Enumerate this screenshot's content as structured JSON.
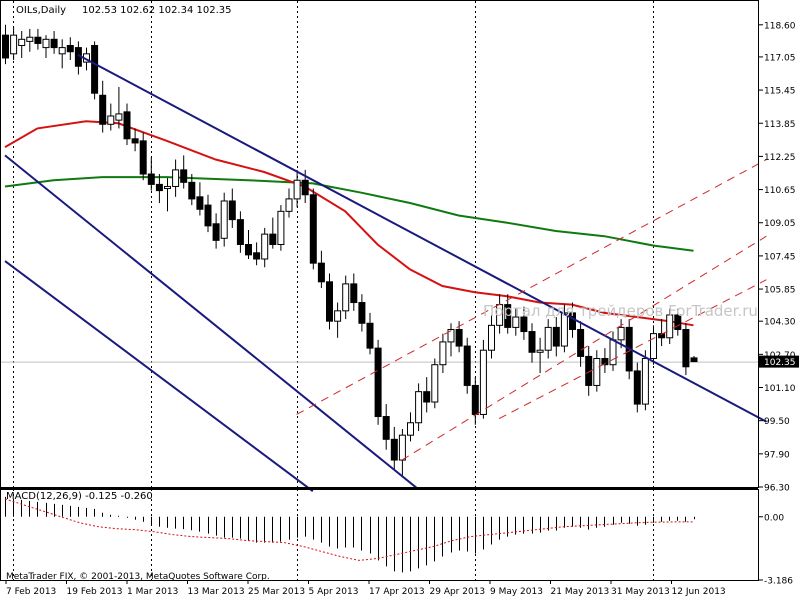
{
  "header": {
    "symbol_tf": "OILs,Daily",
    "ohlc": "102.53 102.62 102.34 102.35"
  },
  "watermark": "Портал для трейдеров ForTrader.ru",
  "copyright": "MetaTrader FIX, © 2001-2013, MetaQuotes Software Corp.",
  "chart_data": [
    {
      "type": "candlestick",
      "title": "OILs,Daily",
      "ylim": [
        96.3,
        119.7
      ],
      "y_ticks": [
        "118.60",
        "117.05",
        "115.45",
        "113.85",
        "112.25",
        "110.65",
        "109.05",
        "107.45",
        "105.85",
        "104.30",
        "102.70",
        "101.10",
        "99.50",
        "97.90",
        "96.30"
      ],
      "x_ticks": [
        "7 Feb 2013",
        "19 Feb 2013",
        "1 Mar 2013",
        "13 Mar 2013",
        "25 Mar 2013",
        "5 Apr 2013",
        "17 Apr 2013",
        "29 Apr 2013",
        "9 May 2013",
        "21 May 2013",
        "31 May 2013",
        "12 Jun 2013"
      ],
      "current_price": "102.35",
      "candles": [
        {
          "o": 118.1,
          "h": 118.6,
          "l": 116.7,
          "c": 117.0
        },
        {
          "o": 117.2,
          "h": 118.5,
          "l": 116.9,
          "c": 118.1
        },
        {
          "o": 117.6,
          "h": 118.3,
          "l": 117.0,
          "c": 117.9
        },
        {
          "o": 117.8,
          "h": 118.4,
          "l": 117.3,
          "c": 118.0
        },
        {
          "o": 118.0,
          "h": 118.4,
          "l": 117.4,
          "c": 117.7
        },
        {
          "o": 117.5,
          "h": 118.1,
          "l": 117.0,
          "c": 117.9
        },
        {
          "o": 117.9,
          "h": 118.3,
          "l": 117.2,
          "c": 117.5
        },
        {
          "o": 117.2,
          "h": 117.9,
          "l": 116.5,
          "c": 117.5
        },
        {
          "o": 117.6,
          "h": 118.0,
          "l": 116.9,
          "c": 117.3
        },
        {
          "o": 117.5,
          "h": 117.8,
          "l": 116.2,
          "c": 116.6
        },
        {
          "o": 116.8,
          "h": 117.5,
          "l": 116.4,
          "c": 117.2
        },
        {
          "o": 117.6,
          "h": 117.8,
          "l": 115.0,
          "c": 115.3
        },
        {
          "o": 115.2,
          "h": 115.9,
          "l": 113.4,
          "c": 113.8
        },
        {
          "o": 113.8,
          "h": 114.8,
          "l": 113.5,
          "c": 114.2
        },
        {
          "o": 114.0,
          "h": 115.6,
          "l": 113.6,
          "c": 114.3
        },
        {
          "o": 114.4,
          "h": 114.8,
          "l": 112.8,
          "c": 113.1
        },
        {
          "o": 113.1,
          "h": 113.6,
          "l": 112.5,
          "c": 112.9
        },
        {
          "o": 113.0,
          "h": 113.4,
          "l": 111.1,
          "c": 111.4
        },
        {
          "o": 111.4,
          "h": 112.2,
          "l": 110.6,
          "c": 110.9
        },
        {
          "o": 110.9,
          "h": 111.4,
          "l": 110.0,
          "c": 110.6
        },
        {
          "o": 110.7,
          "h": 111.2,
          "l": 109.6,
          "c": 110.8
        },
        {
          "o": 110.8,
          "h": 112.1,
          "l": 110.3,
          "c": 111.6
        },
        {
          "o": 111.6,
          "h": 112.3,
          "l": 110.7,
          "c": 111.0
        },
        {
          "o": 111.0,
          "h": 111.4,
          "l": 109.9,
          "c": 110.2
        },
        {
          "o": 110.3,
          "h": 111.0,
          "l": 109.4,
          "c": 109.7
        },
        {
          "o": 109.9,
          "h": 110.4,
          "l": 108.6,
          "c": 108.9
        },
        {
          "o": 109.0,
          "h": 109.5,
          "l": 107.8,
          "c": 108.2
        },
        {
          "o": 108.3,
          "h": 110.5,
          "l": 107.9,
          "c": 110.1
        },
        {
          "o": 110.1,
          "h": 110.7,
          "l": 108.8,
          "c": 109.2
        },
        {
          "o": 109.2,
          "h": 109.6,
          "l": 107.6,
          "c": 108.0
        },
        {
          "o": 108.0,
          "h": 108.7,
          "l": 107.3,
          "c": 107.5
        },
        {
          "o": 107.6,
          "h": 108.1,
          "l": 107.0,
          "c": 107.3
        },
        {
          "o": 107.3,
          "h": 108.8,
          "l": 106.9,
          "c": 108.5
        },
        {
          "o": 108.5,
          "h": 109.3,
          "l": 107.8,
          "c": 108.0
        },
        {
          "o": 108.0,
          "h": 109.9,
          "l": 107.7,
          "c": 109.6
        },
        {
          "o": 109.6,
          "h": 110.7,
          "l": 109.3,
          "c": 110.2
        },
        {
          "o": 110.2,
          "h": 111.6,
          "l": 109.8,
          "c": 111.1
        },
        {
          "o": 111.1,
          "h": 111.6,
          "l": 110.0,
          "c": 110.4
        },
        {
          "o": 110.4,
          "h": 110.7,
          "l": 106.8,
          "c": 107.1
        },
        {
          "o": 107.1,
          "h": 107.7,
          "l": 105.9,
          "c": 106.2
        },
        {
          "o": 106.2,
          "h": 106.6,
          "l": 103.9,
          "c": 104.3
        },
        {
          "o": 104.3,
          "h": 105.2,
          "l": 103.5,
          "c": 104.8
        },
        {
          "o": 104.8,
          "h": 106.5,
          "l": 104.4,
          "c": 106.1
        },
        {
          "o": 106.1,
          "h": 106.6,
          "l": 104.8,
          "c": 105.2
        },
        {
          "o": 105.2,
          "h": 105.6,
          "l": 103.8,
          "c": 104.2
        },
        {
          "o": 104.2,
          "h": 104.7,
          "l": 102.7,
          "c": 103.0
        },
        {
          "o": 103.0,
          "h": 103.4,
          "l": 99.3,
          "c": 99.7
        },
        {
          "o": 99.7,
          "h": 100.3,
          "l": 98.1,
          "c": 98.6
        },
        {
          "o": 98.6,
          "h": 99.2,
          "l": 97.1,
          "c": 97.6
        },
        {
          "o": 97.6,
          "h": 99.1,
          "l": 96.8,
          "c": 98.8
        },
        {
          "o": 98.8,
          "h": 99.9,
          "l": 98.5,
          "c": 99.4
        },
        {
          "o": 99.4,
          "h": 101.3,
          "l": 99.0,
          "c": 100.9
        },
        {
          "o": 100.9,
          "h": 101.6,
          "l": 99.9,
          "c": 100.4
        },
        {
          "o": 100.4,
          "h": 102.5,
          "l": 100.1,
          "c": 102.2
        },
        {
          "o": 102.2,
          "h": 103.7,
          "l": 101.8,
          "c": 103.3
        },
        {
          "o": 103.3,
          "h": 104.2,
          "l": 102.6,
          "c": 103.9
        },
        {
          "o": 103.9,
          "h": 104.3,
          "l": 102.8,
          "c": 103.1
        },
        {
          "o": 103.1,
          "h": 103.5,
          "l": 100.8,
          "c": 101.2
        },
        {
          "o": 101.2,
          "h": 101.6,
          "l": 99.3,
          "c": 99.8
        },
        {
          "o": 99.8,
          "h": 103.4,
          "l": 99.6,
          "c": 102.9
        },
        {
          "o": 102.9,
          "h": 104.6,
          "l": 102.5,
          "c": 104.1
        },
        {
          "o": 104.1,
          "h": 105.6,
          "l": 103.7,
          "c": 105.1
        },
        {
          "o": 105.1,
          "h": 105.6,
          "l": 103.7,
          "c": 104.0
        },
        {
          "o": 104.0,
          "h": 104.9,
          "l": 103.6,
          "c": 104.5
        },
        {
          "o": 104.5,
          "h": 105.0,
          "l": 103.4,
          "c": 103.8
        },
        {
          "o": 103.8,
          "h": 104.2,
          "l": 102.3,
          "c": 102.8
        },
        {
          "o": 102.8,
          "h": 103.5,
          "l": 101.8,
          "c": 102.9
        },
        {
          "o": 102.9,
          "h": 104.4,
          "l": 102.5,
          "c": 104.0
        },
        {
          "o": 104.0,
          "h": 104.5,
          "l": 102.6,
          "c": 103.1
        },
        {
          "o": 103.1,
          "h": 105.1,
          "l": 102.8,
          "c": 104.7
        },
        {
          "o": 104.7,
          "h": 105.2,
          "l": 103.5,
          "c": 103.9
        },
        {
          "o": 103.9,
          "h": 104.3,
          "l": 102.1,
          "c": 102.6
        },
        {
          "o": 102.6,
          "h": 103.1,
          "l": 100.7,
          "c": 101.2
        },
        {
          "o": 101.2,
          "h": 102.9,
          "l": 100.9,
          "c": 102.5
        },
        {
          "o": 102.5,
          "h": 103.0,
          "l": 101.8,
          "c": 102.2
        },
        {
          "o": 102.2,
          "h": 103.8,
          "l": 101.9,
          "c": 103.4
        },
        {
          "o": 103.4,
          "h": 104.4,
          "l": 103.0,
          "c": 104.0
        },
        {
          "o": 104.0,
          "h": 104.4,
          "l": 101.5,
          "c": 101.9
        },
        {
          "o": 101.9,
          "h": 102.3,
          "l": 99.9,
          "c": 100.3
        },
        {
          "o": 100.3,
          "h": 102.9,
          "l": 100.0,
          "c": 102.5
        },
        {
          "o": 102.5,
          "h": 104.1,
          "l": 102.2,
          "c": 103.7
        },
        {
          "o": 103.7,
          "h": 104.4,
          "l": 103.1,
          "c": 103.5
        },
        {
          "o": 103.5,
          "h": 104.9,
          "l": 103.2,
          "c": 104.6
        },
        {
          "o": 104.6,
          "h": 104.9,
          "l": 103.6,
          "c": 103.9
        },
        {
          "o": 103.9,
          "h": 104.2,
          "l": 101.7,
          "c": 102.1
        },
        {
          "o": 102.53,
          "h": 102.62,
          "l": 102.34,
          "c": 102.35
        }
      ],
      "ma_fast": [
        [
          0,
          112.7
        ],
        [
          4,
          113.6
        ],
        [
          10,
          113.95
        ],
        [
          14,
          113.85
        ],
        [
          20,
          113.0
        ],
        [
          26,
          112.1
        ],
        [
          32,
          111.5
        ],
        [
          37,
          110.8
        ],
        [
          42,
          109.6
        ],
        [
          46,
          108.0
        ],
        [
          50,
          106.8
        ],
        [
          54,
          106.0
        ],
        [
          58,
          105.7
        ],
        [
          62,
          105.5
        ],
        [
          66,
          105.2
        ],
        [
          70,
          105.1
        ],
        [
          74,
          104.7
        ],
        [
          78,
          104.5
        ],
        [
          82,
          104.3
        ],
        [
          85,
          104.1
        ]
      ],
      "ma_slow": [
        [
          0,
          110.8
        ],
        [
          6,
          111.1
        ],
        [
          12,
          111.25
        ],
        [
          20,
          111.25
        ],
        [
          30,
          111.1
        ],
        [
          38,
          110.95
        ],
        [
          44,
          110.5
        ],
        [
          50,
          110.0
        ],
        [
          56,
          109.4
        ],
        [
          62,
          109.05
        ],
        [
          68,
          108.65
        ],
        [
          74,
          108.4
        ],
        [
          80,
          107.95
        ],
        [
          85,
          107.7
        ]
      ],
      "channel_lines": [
        {
          "style": "solid",
          "color": "#1a1a7e",
          "from": [
            9,
            117.15
          ],
          "to": [
            94,
            99.45
          ]
        },
        {
          "style": "solid",
          "color": "#1a1a7e",
          "from": [
            0,
            112.3
          ],
          "to": [
            51,
            96.2
          ]
        },
        {
          "style": "solid",
          "color": "#1a1a7e",
          "from": [
            0,
            107.2
          ],
          "to": [
            38,
            96.1
          ]
        },
        {
          "style": "dashed",
          "color": "#d0282a",
          "from": [
            36,
            99.8
          ],
          "to": [
            94,
            112.1
          ]
        },
        {
          "style": "dashed",
          "color": "#d0282a",
          "from": [
            49,
            97.6
          ],
          "to": [
            94,
            108.4
          ]
        },
        {
          "style": "dashed",
          "color": "#d0282a",
          "from": [
            61,
            99.6
          ],
          "to": [
            94,
            106.3
          ]
        }
      ],
      "period_separators": [
        1,
        18,
        36,
        58,
        80
      ]
    },
    {
      "type": "histogram",
      "title": "MACD(12,26,9) -0.125 -0.260",
      "ylim": [
        -3.186,
        1.4
      ],
      "y_ticks": [
        "0.00",
        "-3.186"
      ],
      "macd": [
        1.0,
        0.9,
        0.85,
        0.8,
        0.75,
        0.7,
        0.65,
        0.6,
        0.55,
        0.5,
        0.45,
        0.4,
        0.2,
        0.1,
        0.05,
        -0.05,
        -0.15,
        -0.25,
        -0.4,
        -0.5,
        -0.55,
        -0.6,
        -0.62,
        -0.68,
        -0.75,
        -0.85,
        -0.95,
        -1.05,
        -1.05,
        -1.1,
        -1.2,
        -1.3,
        -1.3,
        -1.3,
        -1.25,
        -1.15,
        -1.05,
        -1.0,
        -1.15,
        -1.3,
        -1.5,
        -1.6,
        -1.55,
        -1.55,
        -1.7,
        -1.85,
        -2.2,
        -2.5,
        -2.75,
        -2.8,
        -2.75,
        -2.6,
        -2.45,
        -2.25,
        -2.0,
        -1.8,
        -1.7,
        -1.75,
        -1.85,
        -1.65,
        -1.4,
        -1.15,
        -1.0,
        -0.9,
        -0.85,
        -0.85,
        -0.8,
        -0.7,
        -0.7,
        -0.55,
        -0.5,
        -0.55,
        -0.65,
        -0.55,
        -0.5,
        -0.4,
        -0.3,
        -0.35,
        -0.45,
        -0.4,
        -0.3,
        -0.25,
        -0.2,
        -0.2,
        -0.25,
        -0.125
      ],
      "signal": [
        0.9,
        0.6,
        0.3,
        0.0,
        -0.3,
        -0.5,
        -0.6,
        -0.65,
        -0.75,
        -0.9,
        -1.0,
        -1.05,
        -1.1,
        -1.2,
        -1.25,
        -1.3,
        -1.5,
        -1.75,
        -2.0,
        -2.2,
        -2.1,
        -1.9,
        -1.7,
        -1.5,
        -1.2,
        -1.0,
        -0.9,
        -0.8,
        -0.7,
        -0.6,
        -0.5,
        -0.45,
        -0.4,
        -0.35,
        -0.3,
        -0.27,
        -0.26,
        -0.26
      ]
    }
  ]
}
